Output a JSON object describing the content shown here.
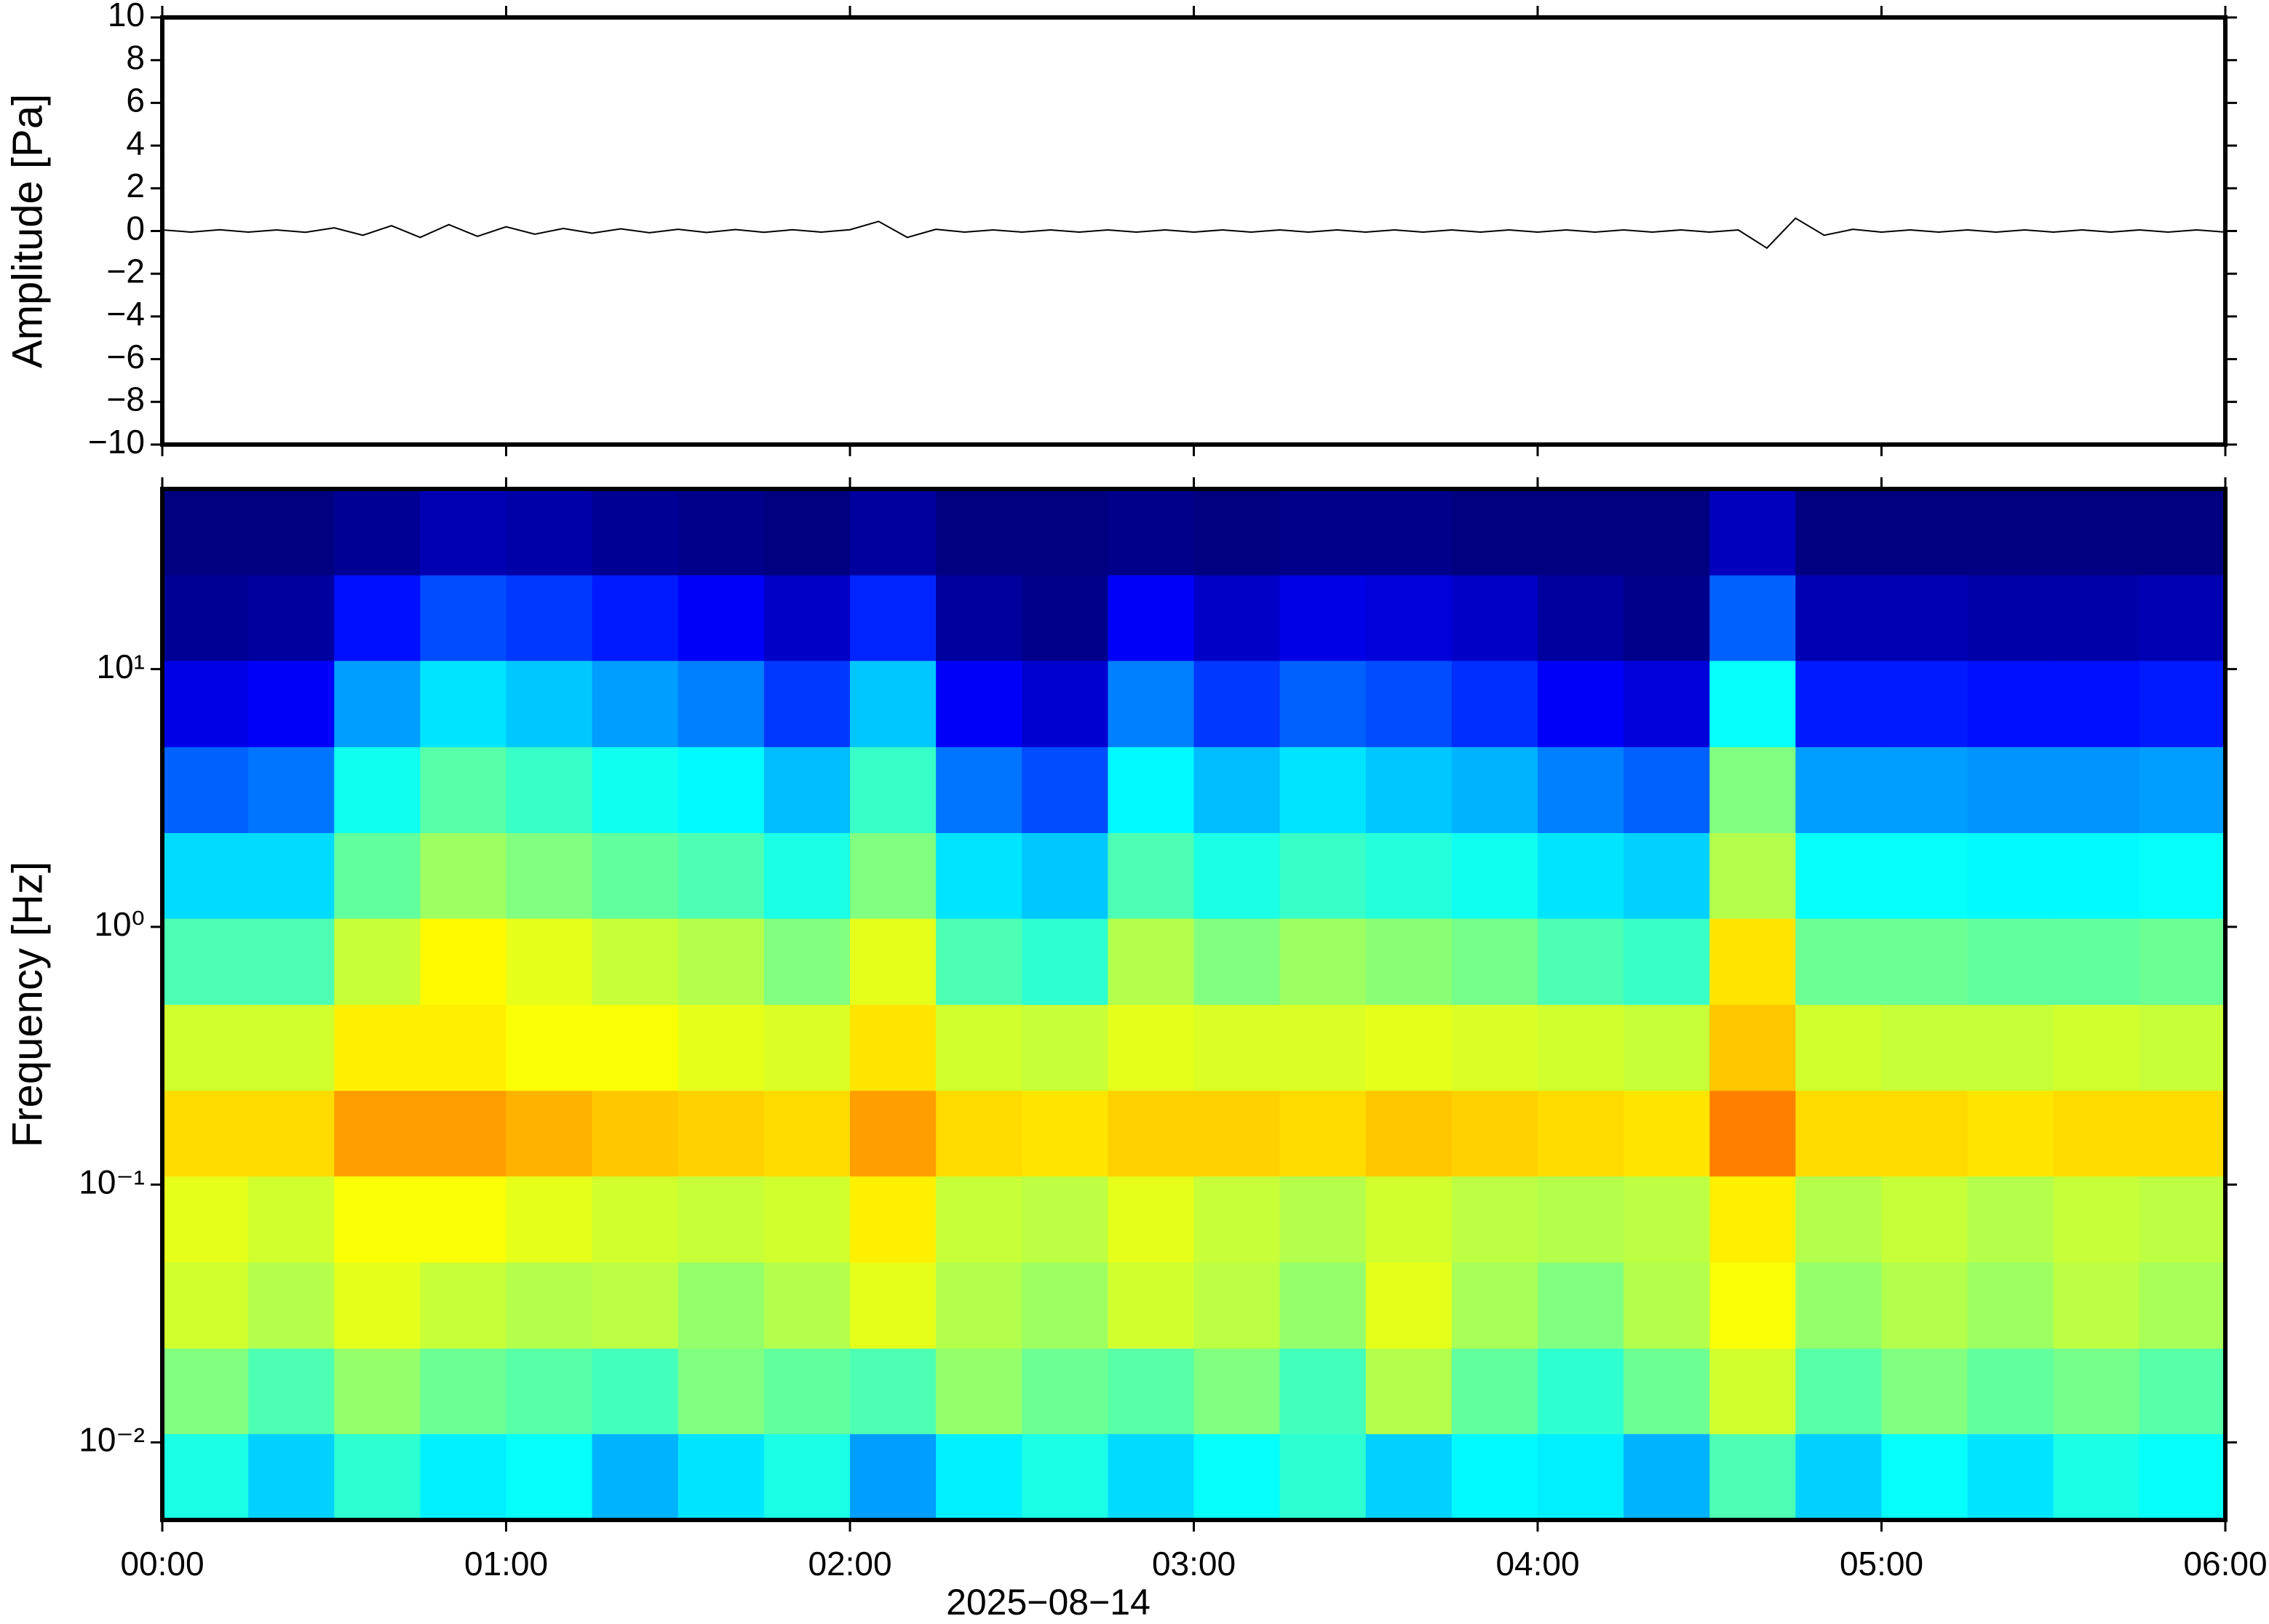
{
  "chart_data": [
    {
      "type": "line",
      "ylabel": "Amplitude [Pa]",
      "color": "#000000",
      "xlim": [
        0,
        360
      ],
      "xticks": [
        0,
        60,
        120,
        180,
        240,
        300,
        360
      ],
      "ylim": [
        -10,
        10
      ],
      "yticks": [
        {
          "value": -10,
          "label": "−10"
        },
        {
          "value": -8,
          "label": "−8"
        },
        {
          "value": -6,
          "label": "−6"
        },
        {
          "value": -4,
          "label": "−4"
        },
        {
          "value": -2,
          "label": "−2"
        },
        0,
        2,
        4,
        6,
        8,
        10
      ],
      "x": [
        0,
        5,
        10,
        15,
        20,
        25,
        30,
        35,
        40,
        45,
        50,
        55,
        60,
        65,
        70,
        75,
        80,
        85,
        90,
        95,
        100,
        105,
        110,
        115,
        120,
        125,
        130,
        135,
        140,
        145,
        150,
        155,
        160,
        165,
        170,
        175,
        180,
        185,
        190,
        195,
        200,
        205,
        210,
        215,
        220,
        225,
        230,
        235,
        240,
        245,
        250,
        255,
        260,
        265,
        270,
        275,
        280,
        285,
        290,
        295,
        300,
        305,
        310,
        315,
        320,
        325,
        330,
        335,
        340,
        345,
        350,
        355,
        360
      ],
      "values": [
        0.05,
        -0.05,
        0.06,
        -0.05,
        0.05,
        -0.06,
        0.15,
        -0.2,
        0.25,
        -0.3,
        0.3,
        -0.25,
        0.2,
        -0.15,
        0.12,
        -0.1,
        0.1,
        -0.08,
        0.08,
        -0.07,
        0.07,
        -0.06,
        0.06,
        -0.05,
        0.06,
        0.45,
        -0.3,
        0.08,
        -0.05,
        0.05,
        -0.05,
        0.05,
        -0.05,
        0.05,
        -0.05,
        0.05,
        -0.05,
        0.05,
        -0.05,
        0.05,
        -0.05,
        0.05,
        -0.05,
        0.05,
        -0.05,
        0.05,
        -0.05,
        0.05,
        -0.05,
        0.05,
        -0.05,
        0.05,
        -0.05,
        0.05,
        -0.05,
        0.05,
        -0.8,
        0.6,
        -0.2,
        0.08,
        -0.05,
        0.05,
        -0.05,
        0.05,
        -0.05,
        0.05,
        -0.05,
        0.05,
        -0.05,
        0.05,
        -0.05,
        0.05,
        -0.05
      ]
    },
    {
      "type": "heatmap",
      "ylabel": "Frequency [Hz]",
      "xlabel": "2025−08−14",
      "log_y": true,
      "xlim": [
        0,
        360
      ],
      "xticks": [
        {
          "value": 0,
          "label": "00:00"
        },
        {
          "value": 60,
          "label": "01:00"
        },
        {
          "value": 120,
          "label": "02:00"
        },
        {
          "value": 180,
          "label": "03:00"
        },
        {
          "value": 240,
          "label": "04:00"
        },
        {
          "value": 300,
          "label": "05:00"
        },
        {
          "value": 360,
          "label": "06:00"
        }
      ],
      "ylim": [
        0.005,
        50
      ],
      "yticks": [
        {
          "value": 0.01,
          "label": "10⁻²"
        },
        {
          "value": 0.1,
          "label": "10⁻¹"
        },
        {
          "value": 1,
          "label": "10⁰"
        },
        {
          "value": 10,
          "label": "10¹"
        }
      ],
      "x_bins": [
        0,
        15,
        30,
        45,
        60,
        75,
        90,
        105,
        120,
        135,
        150,
        165,
        180,
        195,
        210,
        225,
        240,
        255,
        270,
        285,
        300,
        315,
        330,
        345,
        360
      ],
      "y_bins": [
        0.005,
        0.0108,
        0.0232,
        0.05,
        0.108,
        0.232,
        0.5,
        1.08,
        2.32,
        5,
        10.8,
        23.2,
        50
      ],
      "values": [
        [
          0.4,
          0.33,
          0.42,
          0.36,
          0.38,
          0.3,
          0.35,
          0.4,
          0.28,
          0.36,
          0.4,
          0.34,
          0.38,
          0.42,
          0.33,
          0.37,
          0.36,
          0.3,
          0.45,
          0.33,
          0.38,
          0.35,
          0.4,
          0.38
        ],
        [
          0.5,
          0.45,
          0.52,
          0.48,
          0.46,
          0.44,
          0.5,
          0.47,
          0.45,
          0.52,
          0.48,
          0.46,
          0.5,
          0.44,
          0.55,
          0.47,
          0.42,
          0.48,
          0.58,
          0.46,
          0.5,
          0.47,
          0.49,
          0.46
        ],
        [
          0.58,
          0.55,
          0.6,
          0.57,
          0.55,
          0.56,
          0.52,
          0.55,
          0.6,
          0.55,
          0.53,
          0.58,
          0.56,
          0.52,
          0.6,
          0.54,
          0.5,
          0.55,
          0.62,
          0.52,
          0.55,
          0.53,
          0.56,
          0.54
        ],
        [
          0.6,
          0.58,
          0.62,
          0.62,
          0.6,
          0.58,
          0.57,
          0.58,
          0.64,
          0.57,
          0.56,
          0.6,
          0.57,
          0.55,
          0.58,
          0.56,
          0.55,
          0.56,
          0.64,
          0.55,
          0.57,
          0.55,
          0.57,
          0.56
        ],
        [
          0.66,
          0.66,
          0.72,
          0.72,
          0.7,
          0.68,
          0.67,
          0.66,
          0.72,
          0.66,
          0.65,
          0.67,
          0.67,
          0.66,
          0.68,
          0.67,
          0.66,
          0.65,
          0.75,
          0.66,
          0.66,
          0.65,
          0.66,
          0.66
        ],
        [
          0.58,
          0.58,
          0.64,
          0.64,
          0.62,
          0.62,
          0.6,
          0.59,
          0.65,
          0.58,
          0.57,
          0.6,
          0.59,
          0.59,
          0.6,
          0.59,
          0.58,
          0.57,
          0.68,
          0.58,
          0.57,
          0.57,
          0.58,
          0.57
        ],
        [
          0.45,
          0.45,
          0.57,
          0.63,
          0.6,
          0.57,
          0.55,
          0.5,
          0.6,
          0.45,
          0.42,
          0.55,
          0.5,
          0.53,
          0.51,
          0.49,
          0.45,
          0.43,
          0.65,
          0.48,
          0.48,
          0.47,
          0.47,
          0.48
        ],
        [
          0.34,
          0.34,
          0.47,
          0.53,
          0.5,
          0.47,
          0.45,
          0.4,
          0.5,
          0.35,
          0.32,
          0.45,
          0.4,
          0.43,
          0.41,
          0.39,
          0.35,
          0.33,
          0.55,
          0.38,
          0.38,
          0.37,
          0.37,
          0.38
        ],
        [
          0.22,
          0.24,
          0.39,
          0.46,
          0.43,
          0.39,
          0.37,
          0.31,
          0.43,
          0.24,
          0.2,
          0.37,
          0.31,
          0.35,
          0.32,
          0.3,
          0.25,
          0.22,
          0.5,
          0.28,
          0.28,
          0.27,
          0.27,
          0.28
        ],
        [
          0.1,
          0.12,
          0.28,
          0.35,
          0.32,
          0.28,
          0.25,
          0.18,
          0.32,
          0.12,
          0.08,
          0.25,
          0.18,
          0.22,
          0.2,
          0.17,
          0.12,
          0.09,
          0.38,
          0.15,
          0.15,
          0.14,
          0.14,
          0.15
        ],
        [
          0.02,
          0.03,
          0.14,
          0.2,
          0.18,
          0.15,
          0.12,
          0.07,
          0.16,
          0.03,
          0.01,
          0.12,
          0.07,
          0.1,
          0.09,
          0.07,
          0.03,
          0.01,
          0.22,
          0.05,
          0.05,
          0.04,
          0.04,
          0.05
        ],
        [
          0.0,
          0.0,
          0.02,
          0.05,
          0.04,
          0.02,
          0.01,
          0.0,
          0.03,
          0.0,
          0.0,
          0.01,
          0.0,
          0.01,
          0.01,
          0.0,
          0.0,
          0.0,
          0.06,
          0.0,
          0.0,
          0.0,
          0.0,
          0.0
        ]
      ]
    }
  ]
}
